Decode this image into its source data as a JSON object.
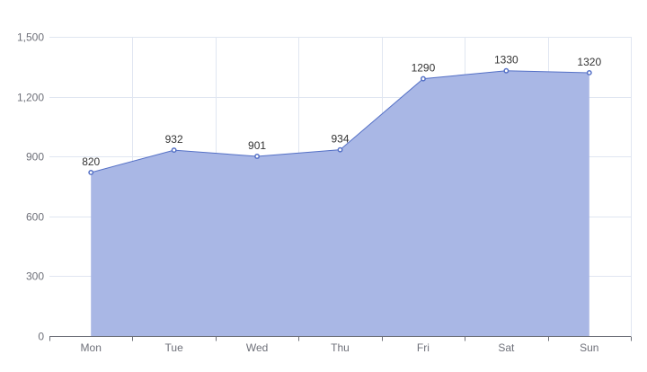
{
  "chart_data": {
    "type": "area",
    "categories": [
      "Mon",
      "Tue",
      "Wed",
      "Thu",
      "Fri",
      "Sat",
      "Sun"
    ],
    "series": [
      {
        "values": [
          820,
          932,
          901,
          934,
          1290,
          1330,
          1320
        ]
      }
    ],
    "y_ticks": [
      "0",
      "300",
      "600",
      "900",
      "1,200",
      "1,500"
    ],
    "ylim": [
      0,
      1500
    ],
    "grid": true,
    "data_labels": true,
    "colors": {
      "area_fill": "#a9b7e5",
      "line": "#5470c6",
      "grid": "#e0e6f1",
      "axis": "#6E7079",
      "point_fill": "#ffffff"
    }
  }
}
